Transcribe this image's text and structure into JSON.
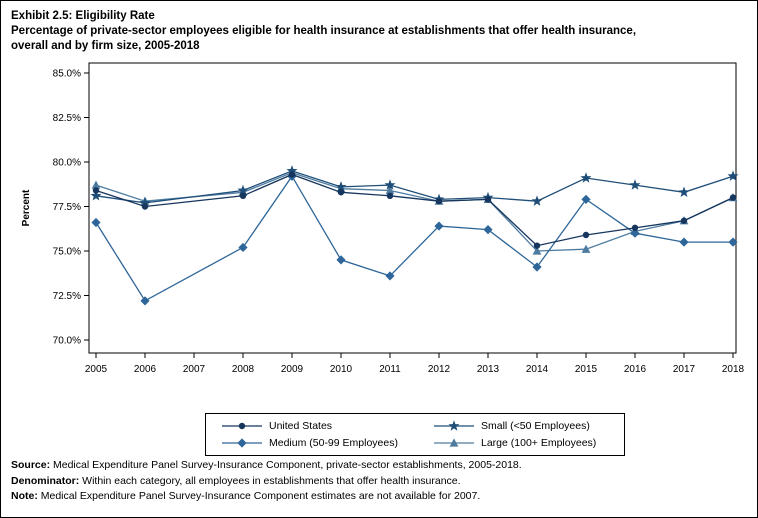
{
  "header": {
    "title": "Exhibit 2.5: Eligibility Rate",
    "subtitle_line1": "Percentage of private-sector employees eligible for health insurance at establishments that offer health insurance,",
    "subtitle_line2": "overall and by firm size, 2005-2018"
  },
  "footnotes": [
    {
      "label": "Source:",
      "text": " Medical Expenditure Panel Survey-Insurance Component, private-sector establishments, 2005-2018."
    },
    {
      "label": "Denominator:",
      "text": " Within each category, all employees in establishments that offer health insurance."
    },
    {
      "label": "Note:",
      "text": " Medical Expenditure Panel Survey-Insurance Component estimates are not available for 2007."
    }
  ],
  "chart_data": {
    "type": "line",
    "x": [
      2005,
      2006,
      2007,
      2008,
      2009,
      2010,
      2011,
      2012,
      2013,
      2014,
      2015,
      2016,
      2017,
      2018
    ],
    "ylabel": "Percent",
    "ylim": [
      70,
      85
    ],
    "grid": false,
    "legend_position": "bottom",
    "note": "2007 estimates not available; lines connect 2006 to 2008",
    "yticks": [
      {
        "value": 70,
        "label": "70.0%"
      },
      {
        "value": 72.5,
        "label": "72.5%"
      },
      {
        "value": 75,
        "label": "75.0%"
      },
      {
        "value": 77.5,
        "label": "77.5%"
      },
      {
        "value": 80,
        "label": "80.0%"
      },
      {
        "value": 82.5,
        "label": "82.5%"
      },
      {
        "value": 85,
        "label": "85.0%"
      }
    ],
    "series": [
      {
        "name": "United States",
        "marker": "circle",
        "color": "#17365d",
        "values": [
          78.4,
          77.5,
          null,
          78.1,
          79.3,
          78.3,
          78.1,
          77.8,
          77.9,
          75.3,
          75.9,
          76.3,
          76.7,
          78.0
        ]
      },
      {
        "name": "Small (<50 Employees)",
        "marker": "star",
        "color": "#1f4e79",
        "values": [
          78.1,
          77.7,
          null,
          78.4,
          79.5,
          78.6,
          78.7,
          77.9,
          78.0,
          77.8,
          79.1,
          78.7,
          78.3,
          79.2
        ]
      },
      {
        "name": "Medium (50-99 Employees)",
        "marker": "diamond",
        "color": "#2e6699",
        "values": [
          76.6,
          72.2,
          null,
          75.2,
          79.2,
          74.5,
          73.6,
          76.4,
          76.2,
          74.1,
          77.9,
          76.0,
          75.5,
          75.5
        ]
      },
      {
        "name": "Large (100+ Employees)",
        "marker": "triangle",
        "color": "#4e7ca1",
        "values": [
          78.7,
          77.8,
          null,
          78.3,
          79.4,
          78.5,
          78.4,
          77.8,
          77.9,
          75.0,
          75.1,
          76.1,
          76.7,
          78.0
        ]
      }
    ]
  }
}
